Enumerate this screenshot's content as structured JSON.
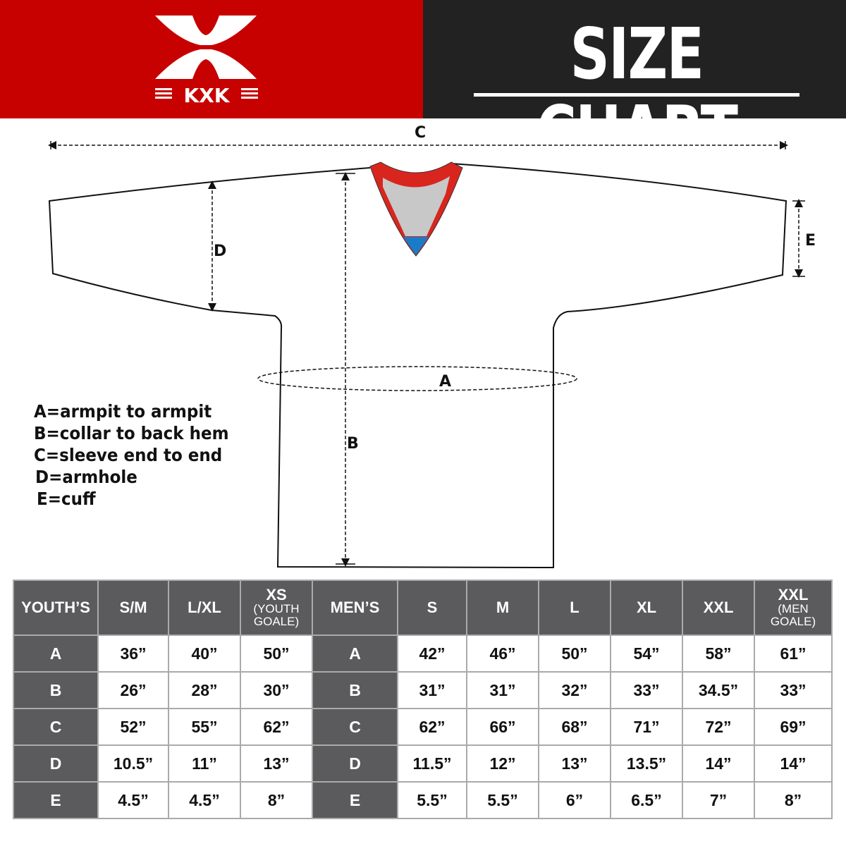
{
  "header": {
    "brand": "KXK",
    "title": "SIZE CHART",
    "brand_color": "#c70000",
    "dark_color": "#222222"
  },
  "diagram": {
    "labels": {
      "a": "A",
      "b": "B",
      "c": "C",
      "d": "D",
      "e": "E"
    }
  },
  "legend": [
    "A=armpit to armpit",
    "B=collar to back hem",
    "C=sleeve end to end",
    "D=armhole",
    "E=cuff"
  ],
  "table": {
    "youth": {
      "header": "YOUTH’S",
      "sizes": [
        {
          "main": "S/M"
        },
        {
          "main": "L/XL"
        },
        {
          "main": "XS",
          "sub1": "(YOUTH",
          "sub2": "GOALE)"
        }
      ],
      "rows": [
        {
          "label": "A",
          "values": [
            "36”",
            "40”",
            "50”"
          ]
        },
        {
          "label": "B",
          "values": [
            "26”",
            "28”",
            "30”"
          ]
        },
        {
          "label": "C",
          "values": [
            "52”",
            "55”",
            "62”"
          ]
        },
        {
          "label": "D",
          "values": [
            "10.5”",
            "11”",
            "13”"
          ]
        },
        {
          "label": "E",
          "values": [
            "4.5”",
            "4.5”",
            "8”"
          ]
        }
      ]
    },
    "men": {
      "header": "MEN’S",
      "sizes": [
        {
          "main": "S"
        },
        {
          "main": "M"
        },
        {
          "main": "L"
        },
        {
          "main": "XL"
        },
        {
          "main": "XXL"
        },
        {
          "main": "XXL",
          "sub1": "(MEN",
          "sub2": "GOALE)"
        }
      ],
      "rows": [
        {
          "label": "A",
          "values": [
            "42”",
            "46”",
            "50”",
            "54”",
            "58”",
            "61”"
          ]
        },
        {
          "label": "B",
          "values": [
            "31”",
            "31”",
            "32”",
            "33”",
            "34.5”",
            "33”"
          ]
        },
        {
          "label": "C",
          "values": [
            "62”",
            "66”",
            "68”",
            "71”",
            "72”",
            "69”"
          ]
        },
        {
          "label": "D",
          "values": [
            "11.5”",
            "12”",
            "13”",
            "13.5”",
            "14”",
            "14”"
          ]
        },
        {
          "label": "E",
          "values": [
            "5.5”",
            "5.5”",
            "6”",
            "6.5”",
            "7”",
            "8”"
          ]
        }
      ]
    }
  }
}
